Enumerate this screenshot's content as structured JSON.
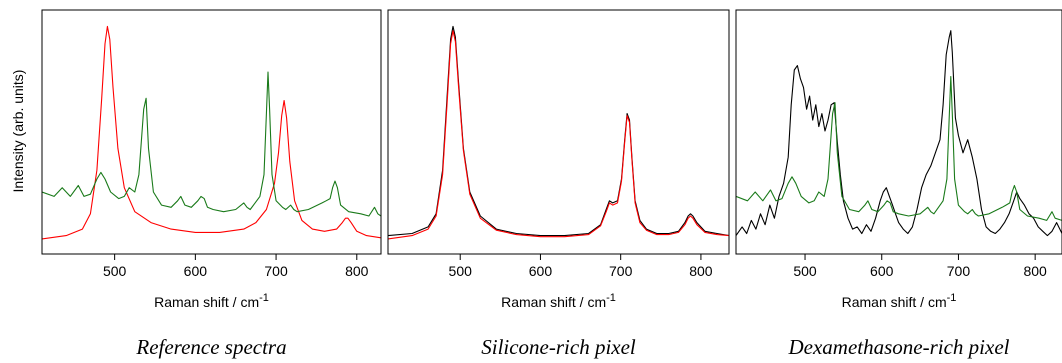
{
  "shared": {
    "ylabel": "Intensity (arb. units)",
    "xlabel_main": "Raman shift / cm",
    "xlabel_sup": "-1"
  },
  "chart_data": [
    {
      "type": "line",
      "caption": "Reference spectra",
      "xlabel": "Raman shift / cm-1",
      "ylabel": "Intensity (arb. units)",
      "xlim": [
        410,
        830
      ],
      "ylim": [
        0,
        1
      ],
      "xticks": [
        500,
        600,
        700,
        800
      ],
      "grid": false,
      "series": [
        {
          "color": "#ff0000",
          "x": [
            410,
            440,
            460,
            470,
            478,
            484,
            488,
            491,
            494,
            498,
            504,
            512,
            525,
            545,
            570,
            600,
            630,
            660,
            675,
            688,
            698,
            703,
            707,
            710,
            713,
            717,
            723,
            732,
            745,
            760,
            775,
            782,
            786,
            789,
            793,
            800,
            812,
            830
          ],
          "y": [
            0.005,
            0.02,
            0.05,
            0.12,
            0.32,
            0.65,
            0.9,
            0.98,
            0.92,
            0.7,
            0.42,
            0.24,
            0.13,
            0.08,
            0.05,
            0.035,
            0.035,
            0.05,
            0.08,
            0.14,
            0.26,
            0.4,
            0.57,
            0.64,
            0.56,
            0.36,
            0.18,
            0.09,
            0.05,
            0.04,
            0.05,
            0.08,
            0.1,
            0.1,
            0.08,
            0.04,
            0.02,
            0.01
          ]
        },
        {
          "color": "#1a7a1a",
          "x": [
            410,
            425,
            435,
            445,
            455,
            462,
            470,
            478,
            483,
            488,
            495,
            505,
            512,
            518,
            525,
            530,
            533,
            536,
            539,
            542,
            548,
            558,
            570,
            578,
            582,
            587,
            595,
            603,
            607,
            611,
            615,
            622,
            635,
            650,
            660,
            664,
            668,
            674,
            680,
            685,
            688,
            690,
            692,
            695,
            700,
            708,
            712,
            718,
            722,
            726,
            740,
            757,
            762,
            767,
            770,
            773,
            776,
            780,
            790,
            805,
            815,
            822,
            826,
            830
          ],
          "y": [
            0.22,
            0.2,
            0.24,
            0.2,
            0.25,
            0.2,
            0.21,
            0.28,
            0.31,
            0.28,
            0.22,
            0.19,
            0.2,
            0.24,
            0.22,
            0.3,
            0.45,
            0.6,
            0.65,
            0.42,
            0.22,
            0.16,
            0.15,
            0.18,
            0.2,
            0.16,
            0.15,
            0.18,
            0.2,
            0.19,
            0.15,
            0.14,
            0.13,
            0.14,
            0.17,
            0.15,
            0.14,
            0.17,
            0.2,
            0.3,
            0.58,
            0.77,
            0.6,
            0.3,
            0.18,
            0.15,
            0.14,
            0.16,
            0.14,
            0.13,
            0.14,
            0.17,
            0.18,
            0.19,
            0.24,
            0.27,
            0.24,
            0.16,
            0.13,
            0.12,
            0.11,
            0.15,
            0.12,
            0.11
          ]
        }
      ]
    },
    {
      "type": "line",
      "caption": "Silicone-rich pixel",
      "xlabel": "Raman shift / cm-1",
      "ylabel": "",
      "xlim": [
        410,
        835
      ],
      "ylim": [
        0,
        1
      ],
      "xticks": [
        500,
        600,
        700,
        800
      ],
      "grid": false,
      "series": [
        {
          "color": "#000000",
          "x": [
            410,
            440,
            460,
            470,
            478,
            484,
            488,
            491,
            494,
            498,
            504,
            512,
            525,
            545,
            570,
            600,
            630,
            660,
            675,
            682,
            686,
            690,
            696,
            701,
            705,
            708,
            711,
            714,
            718,
            724,
            732,
            745,
            760,
            772,
            780,
            784,
            787,
            790,
            795,
            805,
            820,
            835
          ],
          "y": [
            0.02,
            0.03,
            0.06,
            0.12,
            0.32,
            0.68,
            0.92,
            0.98,
            0.93,
            0.72,
            0.42,
            0.22,
            0.11,
            0.05,
            0.03,
            0.02,
            0.02,
            0.03,
            0.07,
            0.14,
            0.18,
            0.17,
            0.18,
            0.28,
            0.46,
            0.58,
            0.55,
            0.38,
            0.18,
            0.09,
            0.05,
            0.03,
            0.03,
            0.04,
            0.08,
            0.11,
            0.12,
            0.11,
            0.08,
            0.04,
            0.03,
            0.02
          ]
        },
        {
          "color": "#ff0000",
          "x": [
            410,
            440,
            460,
            470,
            478,
            484,
            488,
            491,
            494,
            498,
            504,
            512,
            525,
            545,
            570,
            600,
            630,
            660,
            675,
            682,
            686,
            690,
            696,
            701,
            705,
            708,
            711,
            714,
            718,
            724,
            732,
            745,
            760,
            772,
            780,
            784,
            787,
            790,
            795,
            805,
            820,
            835
          ],
          "y": [
            0.005,
            0.02,
            0.05,
            0.11,
            0.3,
            0.65,
            0.9,
            0.96,
            0.91,
            0.7,
            0.41,
            0.21,
            0.1,
            0.045,
            0.025,
            0.015,
            0.015,
            0.025,
            0.065,
            0.13,
            0.17,
            0.16,
            0.17,
            0.27,
            0.45,
            0.57,
            0.54,
            0.37,
            0.17,
            0.08,
            0.045,
            0.025,
            0.025,
            0.035,
            0.07,
            0.1,
            0.11,
            0.1,
            0.07,
            0.035,
            0.025,
            0.02
          ]
        }
      ]
    },
    {
      "type": "line",
      "caption": "Dexamethasone-rich pixel",
      "xlabel": "Raman shift / cm-1",
      "ylabel": "",
      "xlim": [
        410,
        835
      ],
      "ylim": [
        0,
        1
      ],
      "xticks": [
        500,
        600,
        700,
        800
      ],
      "grid": false,
      "series": [
        {
          "color": "#000000",
          "x": [
            410,
            418,
            424,
            430,
            436,
            442,
            448,
            454,
            460,
            466,
            472,
            478,
            482,
            486,
            490,
            494,
            498,
            502,
            506,
            510,
            514,
            518,
            522,
            526,
            530,
            534,
            538,
            542,
            546,
            550,
            556,
            562,
            568,
            574,
            580,
            586,
            592,
            598,
            602,
            606,
            610,
            614,
            618,
            622,
            628,
            634,
            640,
            646,
            652,
            658,
            664,
            670,
            676,
            680,
            684,
            688,
            690,
            692,
            696,
            700,
            706,
            712,
            718,
            724,
            730,
            736,
            742,
            748,
            754,
            760,
            766,
            772,
            776,
            780,
            786,
            792,
            798,
            804,
            810,
            816,
            822,
            828,
            835
          ],
          "y": [
            0.02,
            0.06,
            0.03,
            0.09,
            0.05,
            0.12,
            0.07,
            0.16,
            0.1,
            0.2,
            0.26,
            0.38,
            0.62,
            0.78,
            0.8,
            0.74,
            0.7,
            0.6,
            0.66,
            0.55,
            0.62,
            0.52,
            0.58,
            0.5,
            0.55,
            0.62,
            0.63,
            0.45,
            0.3,
            0.18,
            0.1,
            0.05,
            0.06,
            0.03,
            0.07,
            0.04,
            0.1,
            0.18,
            0.22,
            0.24,
            0.2,
            0.16,
            0.12,
            0.08,
            0.05,
            0.03,
            0.06,
            0.14,
            0.24,
            0.3,
            0.34,
            0.4,
            0.46,
            0.62,
            0.85,
            0.93,
            0.96,
            0.86,
            0.56,
            0.48,
            0.4,
            0.46,
            0.38,
            0.28,
            0.14,
            0.06,
            0.04,
            0.03,
            0.05,
            0.08,
            0.12,
            0.18,
            0.22,
            0.19,
            0.16,
            0.12,
            0.1,
            0.06,
            0.04,
            0.02,
            0.04,
            0.08,
            0.03
          ]
        },
        {
          "color": "#1a7a1a",
          "x": [
            410,
            425,
            435,
            445,
            455,
            462,
            470,
            478,
            483,
            488,
            495,
            505,
            512,
            518,
            525,
            530,
            533,
            536,
            539,
            542,
            548,
            558,
            570,
            578,
            582,
            587,
            595,
            603,
            607,
            611,
            615,
            622,
            635,
            650,
            660,
            664,
            668,
            674,
            680,
            685,
            688,
            690,
            692,
            695,
            700,
            708,
            712,
            718,
            722,
            726,
            740,
            757,
            762,
            767,
            770,
            773,
            776,
            780,
            790,
            805,
            815,
            822,
            826,
            835
          ],
          "y": [
            0.2,
            0.18,
            0.22,
            0.18,
            0.23,
            0.18,
            0.19,
            0.26,
            0.29,
            0.26,
            0.2,
            0.17,
            0.18,
            0.22,
            0.2,
            0.28,
            0.43,
            0.58,
            0.63,
            0.4,
            0.2,
            0.14,
            0.13,
            0.16,
            0.18,
            0.14,
            0.13,
            0.16,
            0.18,
            0.17,
            0.13,
            0.12,
            0.11,
            0.12,
            0.15,
            0.13,
            0.12,
            0.15,
            0.18,
            0.28,
            0.56,
            0.75,
            0.58,
            0.28,
            0.16,
            0.13,
            0.12,
            0.14,
            0.12,
            0.11,
            0.12,
            0.15,
            0.16,
            0.17,
            0.22,
            0.25,
            0.22,
            0.14,
            0.11,
            0.1,
            0.09,
            0.13,
            0.1,
            0.09
          ]
        }
      ]
    }
  ]
}
